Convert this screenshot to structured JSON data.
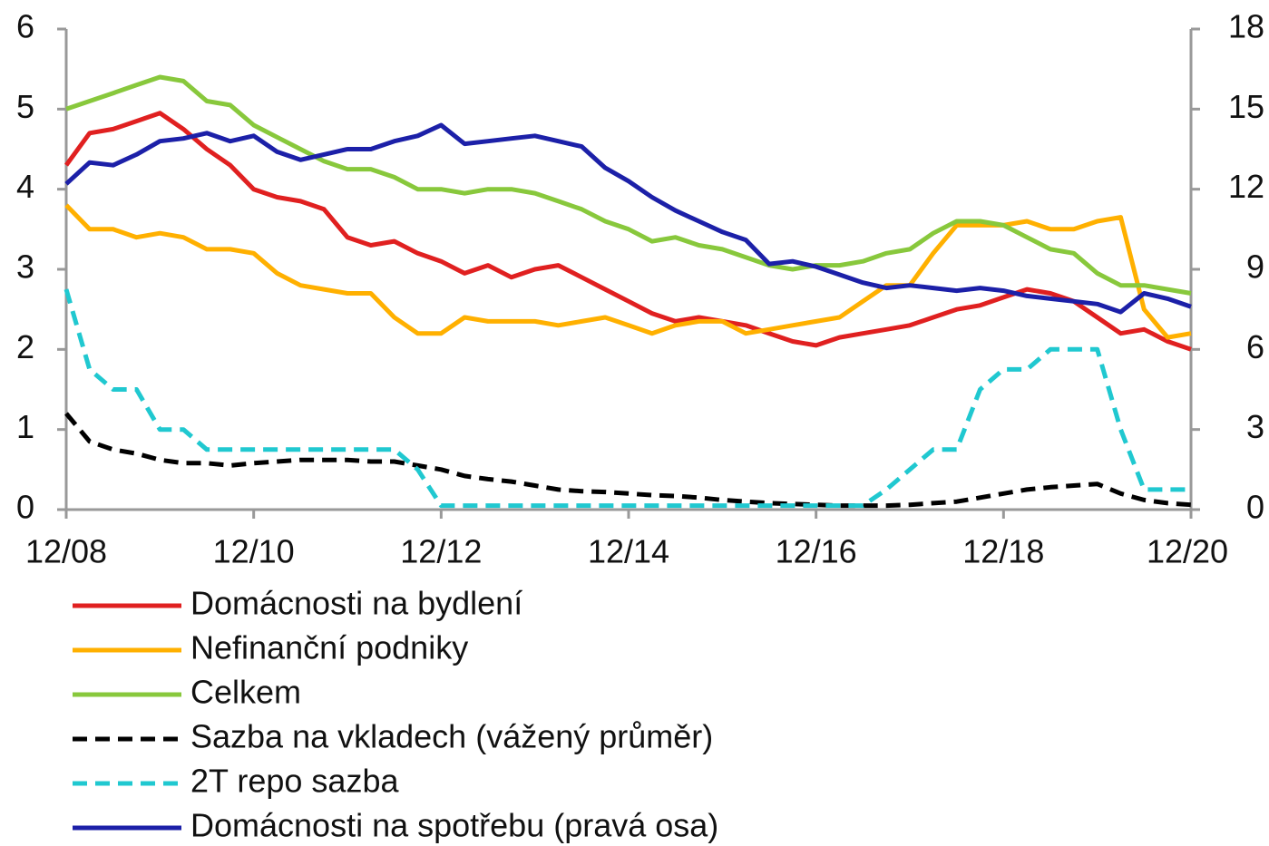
{
  "chart_data": {
    "type": "line",
    "x": [
      "12/08",
      "03/09",
      "06/09",
      "09/09",
      "12/09",
      "03/10",
      "06/10",
      "09/10",
      "12/10",
      "03/11",
      "06/11",
      "09/11",
      "12/11",
      "03/12",
      "06/12",
      "09/12",
      "12/12",
      "03/13",
      "06/13",
      "09/13",
      "12/13",
      "03/14",
      "06/14",
      "09/14",
      "12/14",
      "03/15",
      "06/15",
      "09/15",
      "12/15",
      "03/16",
      "06/16",
      "09/16",
      "12/16",
      "03/17",
      "06/17",
      "09/17",
      "12/17",
      "03/18",
      "06/18",
      "09/18",
      "12/18",
      "03/19",
      "06/19",
      "09/19",
      "12/19",
      "03/20",
      "06/20",
      "09/20",
      "12/20"
    ],
    "xticks": [
      "12/08",
      "12/10",
      "12/12",
      "12/14",
      "12/16",
      "12/18",
      "12/20"
    ],
    "ylim": [
      0,
      6
    ],
    "yticks": [
      0,
      1,
      2,
      3,
      4,
      5,
      6
    ],
    "y2lim": [
      0,
      18
    ],
    "y2ticks": [
      0,
      3,
      6,
      9,
      12,
      15,
      18
    ],
    "series": [
      {
        "name": "Domácnosti na bydlení",
        "color": "#e02020",
        "dashed": false,
        "values": [
          4.3,
          4.7,
          4.75,
          4.85,
          4.95,
          4.75,
          4.5,
          4.3,
          4.0,
          3.9,
          3.85,
          3.75,
          3.4,
          3.3,
          3.35,
          3.2,
          3.1,
          2.95,
          3.05,
          2.9,
          3.0,
          3.05,
          2.9,
          2.75,
          2.6,
          2.45,
          2.35,
          2.4,
          2.35,
          2.3,
          2.2,
          2.1,
          2.05,
          2.15,
          2.2,
          2.25,
          2.3,
          2.4,
          2.5,
          2.55,
          2.65,
          2.75,
          2.7,
          2.6,
          2.4,
          2.2,
          2.25,
          2.1,
          2.0
        ]
      },
      {
        "name": "Nefinanční podniky",
        "color": "#ffb000",
        "dashed": false,
        "values": [
          3.8,
          3.5,
          3.5,
          3.4,
          3.45,
          3.4,
          3.25,
          3.25,
          3.2,
          2.95,
          2.8,
          2.75,
          2.7,
          2.7,
          2.4,
          2.2,
          2.2,
          2.4,
          2.35,
          2.35,
          2.35,
          2.3,
          2.35,
          2.4,
          2.3,
          2.2,
          2.3,
          2.35,
          2.35,
          2.2,
          2.25,
          2.3,
          2.35,
          2.4,
          2.6,
          2.8,
          2.8,
          3.2,
          3.55,
          3.55,
          3.55,
          3.6,
          3.5,
          3.5,
          3.6,
          3.65,
          2.5,
          2.15,
          2.2
        ]
      },
      {
        "name": "Celkem",
        "color": "#88c83c",
        "dashed": false,
        "values": [
          5.0,
          5.1,
          5.2,
          5.3,
          5.4,
          5.35,
          5.1,
          5.05,
          4.8,
          4.65,
          4.5,
          4.35,
          4.25,
          4.25,
          4.15,
          4.0,
          4.0,
          3.95,
          4.0,
          4.0,
          3.95,
          3.85,
          3.75,
          3.6,
          3.5,
          3.35,
          3.4,
          3.3,
          3.25,
          3.15,
          3.05,
          3.0,
          3.05,
          3.05,
          3.1,
          3.2,
          3.25,
          3.45,
          3.6,
          3.6,
          3.55,
          3.4,
          3.25,
          3.2,
          2.95,
          2.8,
          2.8,
          2.75,
          2.7
        ]
      },
      {
        "name": "Sazba na vkladech (vážený průměr)",
        "color": "#000000",
        "dashed": true,
        "values": [
          1.2,
          0.85,
          0.75,
          0.7,
          0.62,
          0.58,
          0.58,
          0.55,
          0.58,
          0.6,
          0.62,
          0.62,
          0.62,
          0.6,
          0.6,
          0.55,
          0.5,
          0.42,
          0.38,
          0.35,
          0.3,
          0.25,
          0.23,
          0.22,
          0.2,
          0.18,
          0.17,
          0.15,
          0.12,
          0.1,
          0.08,
          0.07,
          0.06,
          0.05,
          0.05,
          0.05,
          0.06,
          0.08,
          0.1,
          0.15,
          0.2,
          0.25,
          0.28,
          0.3,
          0.32,
          0.2,
          0.12,
          0.08,
          0.06
        ]
      },
      {
        "name": "2T repo sazba",
        "color": "#20c8d0",
        "dashed": true,
        "values": [
          2.75,
          1.75,
          1.5,
          1.5,
          1.0,
          1.0,
          0.75,
          0.75,
          0.75,
          0.75,
          0.75,
          0.75,
          0.75,
          0.75,
          0.75,
          0.5,
          0.05,
          0.05,
          0.05,
          0.05,
          0.05,
          0.05,
          0.05,
          0.05,
          0.05,
          0.05,
          0.05,
          0.05,
          0.05,
          0.05,
          0.05,
          0.05,
          0.05,
          0.05,
          0.05,
          0.25,
          0.5,
          0.75,
          0.75,
          1.5,
          1.75,
          1.75,
          2.0,
          2.0,
          2.0,
          1.0,
          0.25,
          0.25,
          0.25
        ]
      },
      {
        "name": "Domácnosti na spotřebu (pravá osa)",
        "color": "#1c20a8",
        "dashed": false,
        "axis": "y2",
        "values": [
          12.2,
          13.0,
          12.9,
          13.3,
          13.8,
          13.9,
          14.1,
          13.8,
          14.0,
          13.4,
          13.1,
          13.3,
          13.5,
          13.5,
          13.8,
          14.0,
          14.4,
          13.7,
          13.8,
          13.9,
          14.0,
          13.8,
          13.6,
          12.8,
          12.3,
          11.7,
          11.2,
          10.8,
          10.4,
          10.1,
          9.2,
          9.3,
          9.1,
          8.8,
          8.5,
          8.3,
          8.4,
          8.3,
          8.2,
          8.3,
          8.2,
          8.0,
          7.9,
          7.8,
          7.7,
          7.4,
          8.1,
          7.9,
          7.6
        ]
      }
    ]
  }
}
